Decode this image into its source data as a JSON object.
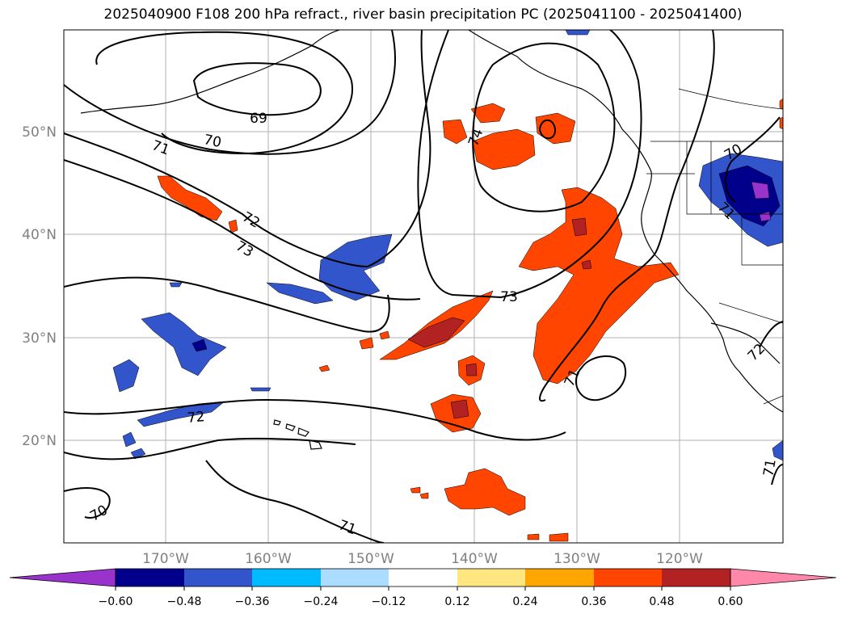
{
  "title": "2025040900 F108 200 hPa refract., river basin precipitation PC (2025041100 - 2025041400)",
  "lat_labels": [
    "50°N",
    "40°N",
    "30°N",
    "20°N"
  ],
  "lon_labels": [
    "170°W",
    "160°W",
    "150°W",
    "140°W",
    "130°W",
    "120°W"
  ],
  "contour_labels": [
    "69",
    "70",
    "71",
    "72",
    "73",
    "74",
    "73",
    "72",
    "70",
    "71",
    "71",
    "72",
    "71",
    "70",
    "71"
  ],
  "colorbar": {
    "ticks": [
      "−0.60",
      "−0.48",
      "−0.36",
      "−0.24",
      "−0.12",
      "0.12",
      "0.24",
      "0.36",
      "0.48",
      "0.60"
    ],
    "colors": [
      "#9933cc",
      "#00008b",
      "#3355cc",
      "#00bbff",
      "#aaddff",
      "#ffffff",
      "#ffe680",
      "#ffa500",
      "#ff4500",
      "#b22222",
      "#ff88aa"
    ]
  },
  "chart_data": {
    "type": "map",
    "region_lat": [
      10,
      60
    ],
    "region_lon": [
      -180,
      -110
    ],
    "variable": "200 hPa refract., river basin precipitation PC",
    "contour_levels": [
      69,
      70,
      71,
      72,
      73,
      74
    ],
    "colorbar_levels": [
      -0.6,
      -0.48,
      -0.36,
      -0.24,
      -0.12,
      0.12,
      0.24,
      0.36,
      0.48,
      0.6
    ]
  }
}
